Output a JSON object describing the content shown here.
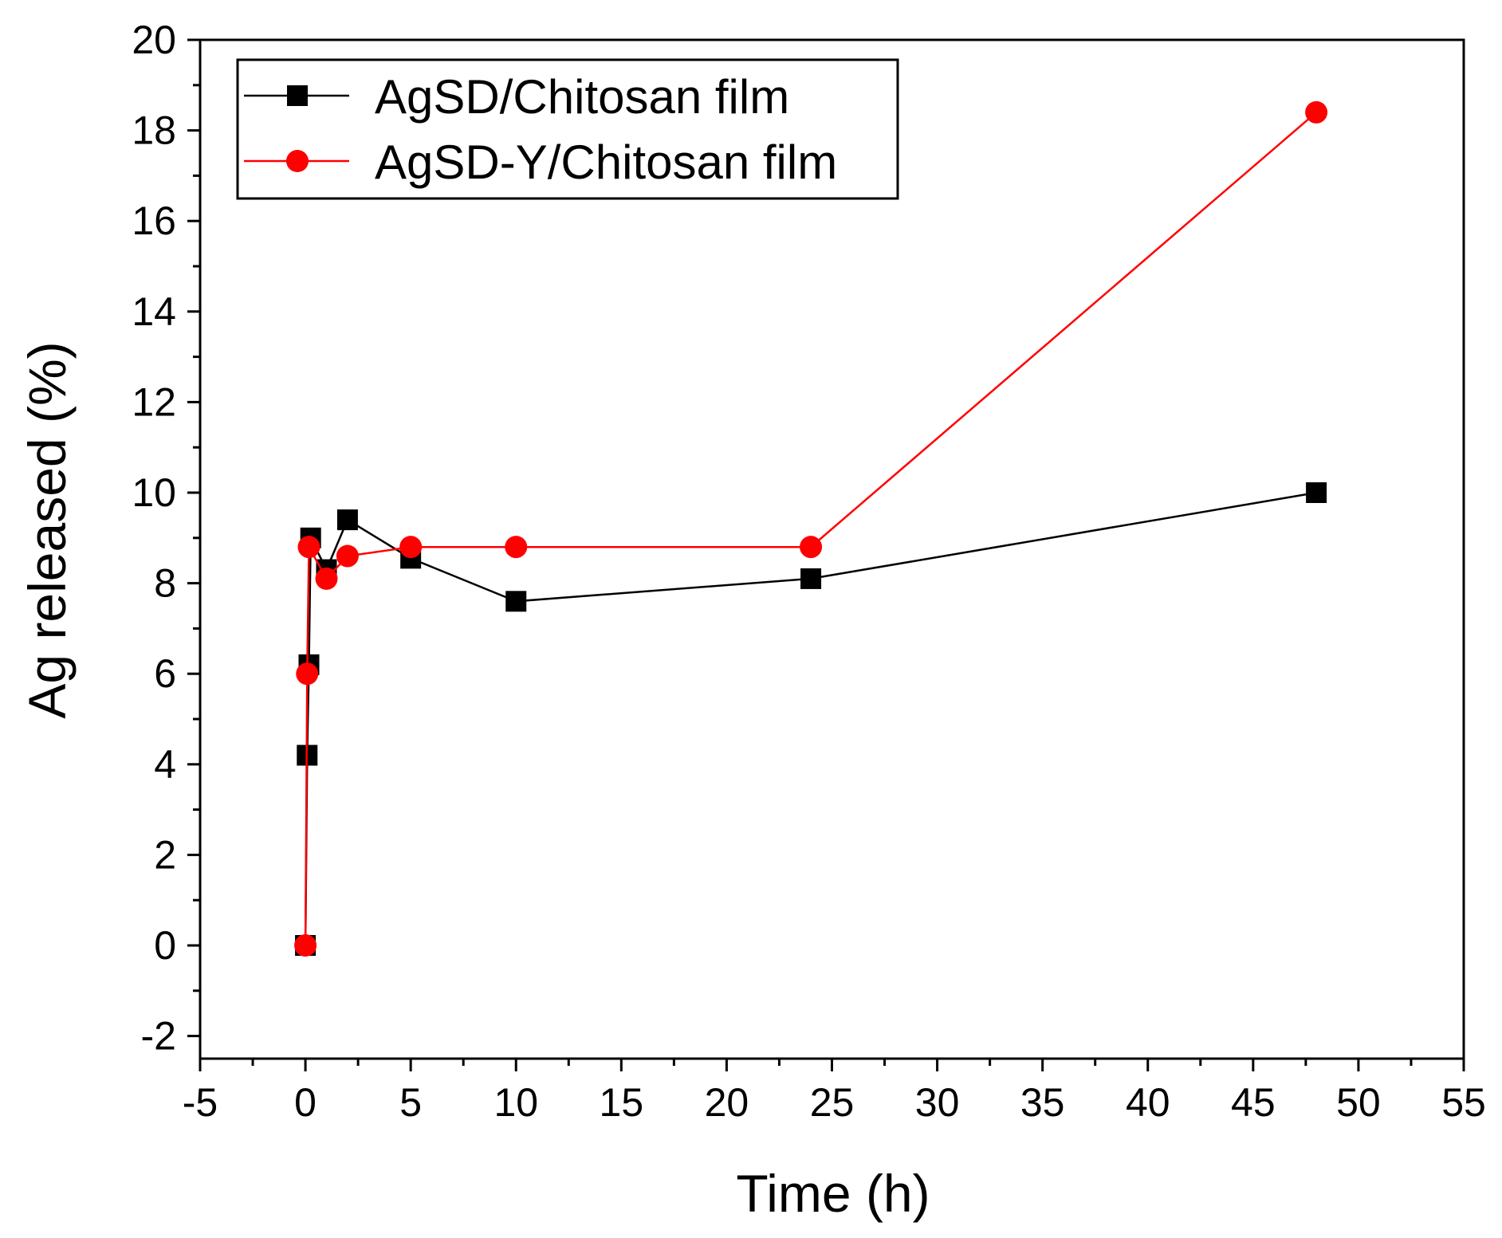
{
  "chart_data": {
    "type": "line",
    "title": "",
    "xlabel": "Time (h)",
    "ylabel": "Ag released (%)",
    "xlim": [
      -5,
      55
    ],
    "ylim": [
      -2.5,
      20
    ],
    "xticks": [
      -5,
      0,
      5,
      10,
      15,
      20,
      25,
      30,
      35,
      40,
      45,
      50,
      55
    ],
    "yticks": [
      -2,
      0,
      2,
      4,
      6,
      8,
      10,
      12,
      14,
      16,
      18,
      20
    ],
    "grid": false,
    "legend_position": "top-left",
    "series": [
      {
        "name": "AgSD/Chitosan film",
        "color": "#000000",
        "marker": "square",
        "x": [
          0,
          0.083,
          0.167,
          0.25,
          1,
          2,
          5,
          10,
          24,
          48
        ],
        "y": [
          0,
          4.2,
          6.2,
          9.0,
          8.3,
          9.4,
          8.55,
          7.6,
          8.1,
          10.0
        ]
      },
      {
        "name": "AgSD-Y/Chitosan film",
        "color": "#ff0000",
        "marker": "circle",
        "x": [
          0,
          0.083,
          0.167,
          1,
          2,
          5,
          10,
          24,
          48
        ],
        "y": [
          0,
          6.0,
          8.8,
          8.1,
          8.6,
          8.8,
          8.8,
          8.8,
          18.4
        ]
      }
    ]
  }
}
